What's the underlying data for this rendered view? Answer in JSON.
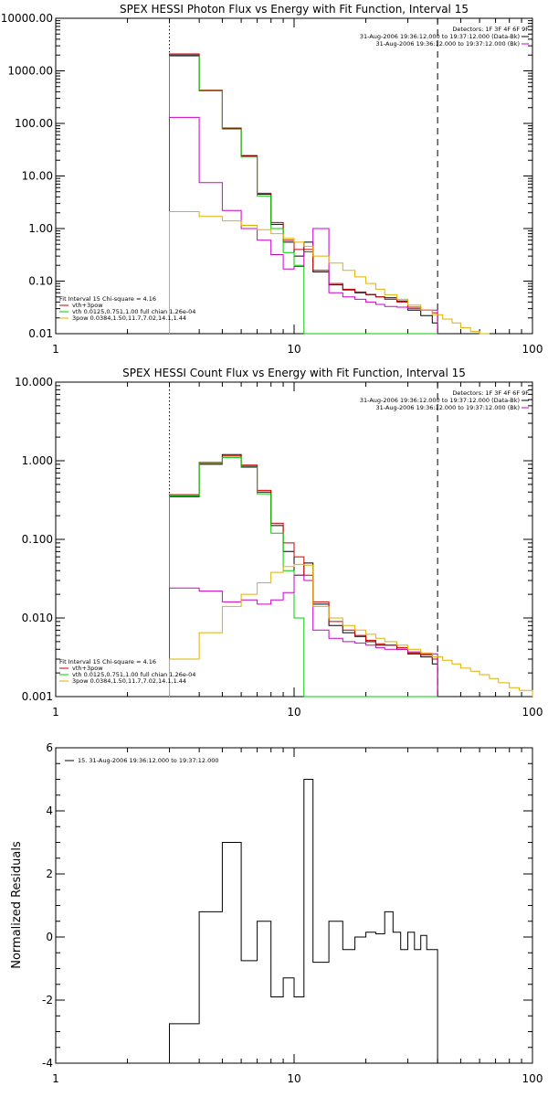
{
  "chart_data": [
    {
      "type": "line",
      "step": true,
      "title": "SPEX HESSI Photon Flux vs Energy with Fit Function, Interval 15",
      "xlabel": "",
      "ylabel": "",
      "xscale": "log",
      "yscale": "log",
      "xlim": [
        1,
        100
      ],
      "ylim": [
        0.01,
        10000
      ],
      "x_ticks": [
        1,
        10,
        100
      ],
      "x_tick_labels": [
        "1",
        "10",
        "100"
      ],
      "y_ticks": [
        0.01,
        0.1,
        1,
        10,
        100,
        1000,
        10000
      ],
      "y_tick_labels": [
        "0.01",
        "0.10",
        "1.00",
        "10.00",
        "100.00",
        "1000.00",
        "10000.00"
      ],
      "vlines": [
        {
          "x": 3,
          "style": "dotted"
        },
        {
          "x": 40,
          "style": "dashed"
        }
      ],
      "legend_top": {
        "placement": "top-right",
        "lines": [
          "Detectors: 1F 3F 4F 6F 9F",
          "31-Aug-2006 19:36:12.000 to 19:37:12.000 (Data-Bk)",
          "31-Aug-2006 19:36:12.000 to 19:37:12.000 (Bk)"
        ],
        "colors": [
          "",
          "#000000",
          "#cc00cc"
        ]
      },
      "legend_bottom": {
        "placement": "bottom-left",
        "header": "Fit Interval 15   Chi-square = 4.16",
        "entries": [
          {
            "label": "vth+3pow",
            "color": "#cc0000"
          },
          {
            "label": "vth 0.0125,0.751,1.00  full chian 1.26e-04",
            "color": "#00cc00"
          },
          {
            "label": "3pow 0.0384,1.50,11.7,7.02,14.1,1.44",
            "color": "#e0b000"
          }
        ]
      },
      "bin_edges": [
        3,
        4,
        5,
        6,
        7,
        8,
        9,
        10,
        11,
        12,
        14,
        16,
        18,
        20,
        22,
        24,
        27,
        30,
        34,
        38,
        40
      ],
      "series": [
        {
          "color": "#000000",
          "values": [
            2000,
            420,
            80,
            24,
            4.5,
            1.2,
            0.55,
            0.3,
            0.55,
            0.15,
            0.085,
            0.068,
            0.06,
            0.055,
            0.05,
            0.048,
            0.042,
            0.028,
            0.022,
            0.016
          ]
        },
        {
          "color": "#cc0000",
          "values": [
            2100,
            430,
            82,
            24.5,
            4.7,
            1.3,
            0.6,
            0.4,
            0.4,
            0.16,
            0.09,
            0.07,
            0.062,
            0.056,
            0.05,
            0.045,
            0.04,
            0.032,
            0.028,
            0.025
          ]
        },
        {
          "color": "#00cc00",
          "values": [
            1900,
            420,
            78,
            23,
            4.2,
            1.0,
            0.35,
            0.2,
            0.01,
            0.01,
            0.01,
            0.01,
            0.01,
            0.01,
            0.01,
            0.01,
            0.01,
            0.01,
            0.01,
            0.01
          ]
        },
        {
          "color": "#cc00cc",
          "values": [
            130,
            7.5,
            2.2,
            1.0,
            0.6,
            0.32,
            0.17,
            0.19,
            0.36,
            1.0,
            0.06,
            0.05,
            0.045,
            0.04,
            0.036,
            0.033,
            0.032,
            0.03,
            0.028,
            0.028
          ]
        },
        {
          "color": "#e0b000",
          "edges": [
            3,
            4,
            5,
            6,
            7,
            8,
            9,
            10,
            11,
            12,
            14,
            16,
            18,
            20,
            22,
            24,
            27,
            30,
            34,
            38,
            42,
            46,
            50,
            55,
            60,
            66
          ],
          "values": [
            2.1,
            1.7,
            1.4,
            1.15,
            0.95,
            0.8,
            0.65,
            0.55,
            0.46,
            0.3,
            0.22,
            0.16,
            0.12,
            0.09,
            0.07,
            0.055,
            0.045,
            0.035,
            0.028,
            0.023,
            0.019,
            0.016,
            0.013,
            0.011,
            0.01
          ]
        }
      ]
    },
    {
      "type": "line",
      "step": true,
      "title": "SPEX HESSI Count Flux vs Energy with Fit Function, Interval 15",
      "xlabel": "",
      "ylabel": "",
      "xscale": "log",
      "yscale": "log",
      "xlim": [
        1,
        100
      ],
      "ylim": [
        0.001,
        10
      ],
      "x_ticks": [
        1,
        10,
        100
      ],
      "x_tick_labels": [
        "1",
        "10",
        "100"
      ],
      "y_ticks": [
        0.001,
        0.01,
        0.1,
        1,
        10
      ],
      "y_tick_labels": [
        "0.001",
        "0.010",
        "0.100",
        "1.000",
        "10.000"
      ],
      "vlines": [
        {
          "x": 3,
          "style": "dotted"
        },
        {
          "x": 40,
          "style": "dashed"
        }
      ],
      "legend_top": {
        "placement": "top-right",
        "lines": [
          "Detectors: 1F 3F 4F 6F 9F",
          "31-Aug-2006 19:36:12.000 to 19:37:12.000 (Data-Bk)",
          "31-Aug-2006 19:36:12.000 to 19:37:12.000 (Bk)"
        ],
        "colors": [
          "",
          "#000000",
          "#cc00cc"
        ]
      },
      "legend_bottom": {
        "placement": "bottom-left",
        "header": "Fit Interval 15   Chi-square = 4.16",
        "entries": [
          {
            "label": "vth+3pow",
            "color": "#cc0000"
          },
          {
            "label": "vth 0.0125,0.751,1.00  full chian 1.26e-04",
            "color": "#00cc00"
          },
          {
            "label": "3pow 0.0384,1.50,11.7,7.02,14.1,1.44",
            "color": "#e0b000"
          }
        ]
      },
      "bin_edges": [
        3,
        4,
        5,
        6,
        7,
        8,
        9,
        10,
        11,
        12,
        14,
        16,
        18,
        20,
        22,
        24,
        27,
        30,
        34,
        38,
        40
      ],
      "series": [
        {
          "color": "#000000",
          "values": [
            0.35,
            0.9,
            1.2,
            0.85,
            0.4,
            0.15,
            0.07,
            0.035,
            0.05,
            0.015,
            0.008,
            0.0065,
            0.0058,
            0.005,
            0.0045,
            0.0045,
            0.004,
            0.0035,
            0.0032,
            0.0026
          ]
        },
        {
          "color": "#cc0000",
          "values": [
            0.37,
            0.95,
            1.15,
            0.88,
            0.42,
            0.16,
            0.09,
            0.06,
            0.035,
            0.016,
            0.009,
            0.007,
            0.006,
            0.0052,
            0.0047,
            0.0045,
            0.0042,
            0.0036,
            0.0034,
            0.003
          ]
        },
        {
          "color": "#00cc00",
          "values": [
            0.36,
            0.92,
            1.1,
            0.82,
            0.38,
            0.12,
            0.04,
            0.01,
            0.001,
            0.001,
            0.001,
            0.001,
            0.001,
            0.001,
            0.001,
            0.001,
            0.001,
            0.001,
            0.001,
            0.001
          ]
        },
        {
          "color": "#cc00cc",
          "values": [
            0.024,
            0.022,
            0.016,
            0.017,
            0.015,
            0.017,
            0.021,
            0.035,
            0.03,
            0.007,
            0.0055,
            0.005,
            0.0048,
            0.0045,
            0.0042,
            0.004,
            0.004,
            0.0037,
            0.0035,
            0.0035
          ]
        },
        {
          "color": "#e0b000",
          "edges": [
            3,
            4,
            5,
            6,
            7,
            8,
            9,
            10,
            11,
            12,
            14,
            16,
            18,
            20,
            22,
            24,
            27,
            30,
            34,
            38,
            42,
            46,
            50,
            55,
            60,
            66,
            72,
            80,
            88,
            100
          ],
          "values": [
            0.003,
            0.0065,
            0.014,
            0.02,
            0.028,
            0.038,
            0.045,
            0.048,
            0.047,
            0.014,
            0.01,
            0.008,
            0.007,
            0.0062,
            0.0055,
            0.005,
            0.0045,
            0.004,
            0.0036,
            0.0032,
            0.0029,
            0.0026,
            0.0023,
            0.0021,
            0.0019,
            0.0017,
            0.0015,
            0.0013,
            0.0012
          ]
        }
      ]
    },
    {
      "type": "line",
      "step": true,
      "title": "",
      "xlabel": "",
      "ylabel": "Normalized Residuals",
      "xscale": "log",
      "yscale": "linear",
      "xlim": [
        1,
        100
      ],
      "ylim": [
        -4,
        6
      ],
      "x_ticks": [
        1,
        10,
        100
      ],
      "x_tick_labels": [
        "1",
        "10",
        "100"
      ],
      "y_ticks": [
        -4,
        -2,
        0,
        2,
        4,
        6
      ],
      "y_tick_labels": [
        "-4",
        "-2",
        "0",
        "2",
        "4",
        "6"
      ],
      "legend_top": {
        "placement": "top-left",
        "lines": [
          "15. 31-Aug-2006 19:36:12.000 to 19:37:12.000"
        ],
        "colors": [
          "#000000"
        ]
      },
      "bin_edges": [
        3,
        3.5,
        4,
        4.5,
        5,
        5.5,
        6,
        6.5,
        7,
        7.5,
        8,
        8.5,
        9,
        9.5,
        10,
        11,
        12,
        13,
        14,
        15,
        16,
        17,
        18,
        20,
        22,
        24,
        26,
        28,
        30,
        32,
        34,
        36,
        38,
        40
      ],
      "series": [
        {
          "color": "#000000",
          "values": [
            -2.75,
            -2.75,
            0.8,
            0.8,
            3.0,
            3.0,
            -0.75,
            -0.75,
            0.5,
            0.5,
            -1.9,
            -1.9,
            -1.3,
            -1.3,
            -1.9,
            5.0,
            -0.8,
            -0.8,
            0.5,
            0.5,
            -0.4,
            -0.4,
            0.0,
            0.15,
            0.1,
            0.8,
            0.15,
            -0.4,
            0.15,
            -0.4,
            0.05,
            -0.4,
            -0.4
          ]
        }
      ]
    }
  ]
}
